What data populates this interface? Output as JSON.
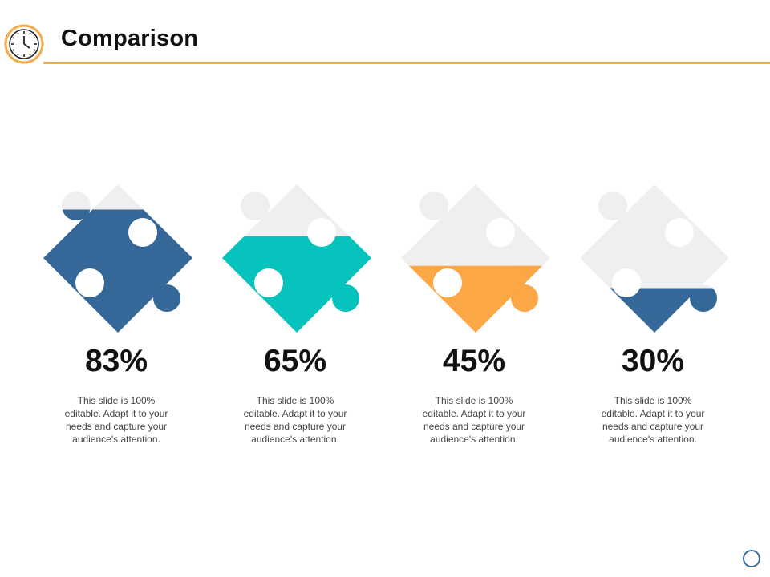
{
  "header": {
    "title": "Comparison",
    "icon": "clock-icon"
  },
  "colors": {
    "accent": "#F3AC4C",
    "empty_piece": "#EFEFEF",
    "blue": "#356899",
    "teal": "#05C3BC",
    "orange": "#FBA745"
  },
  "items": [
    {
      "percent": "83%",
      "fill": 0.83,
      "color": "#356899",
      "text": "This slide is 100% editable. Adapt it to your needs and capture your audience's attention."
    },
    {
      "percent": "65%",
      "fill": 0.65,
      "color": "#05C3BC",
      "text": "This slide is 100% editable. Adapt it to your needs and capture your audience's attention."
    },
    {
      "percent": "45%",
      "fill": 0.45,
      "color": "#FBA745",
      "text": "This slide is 100% editable. Adapt it to your needs and capture your audience's attention."
    },
    {
      "percent": "30%",
      "fill": 0.3,
      "color": "#356899",
      "text": "This slide is 100% editable. Adapt it to your needs and capture your audience's attention."
    }
  ]
}
